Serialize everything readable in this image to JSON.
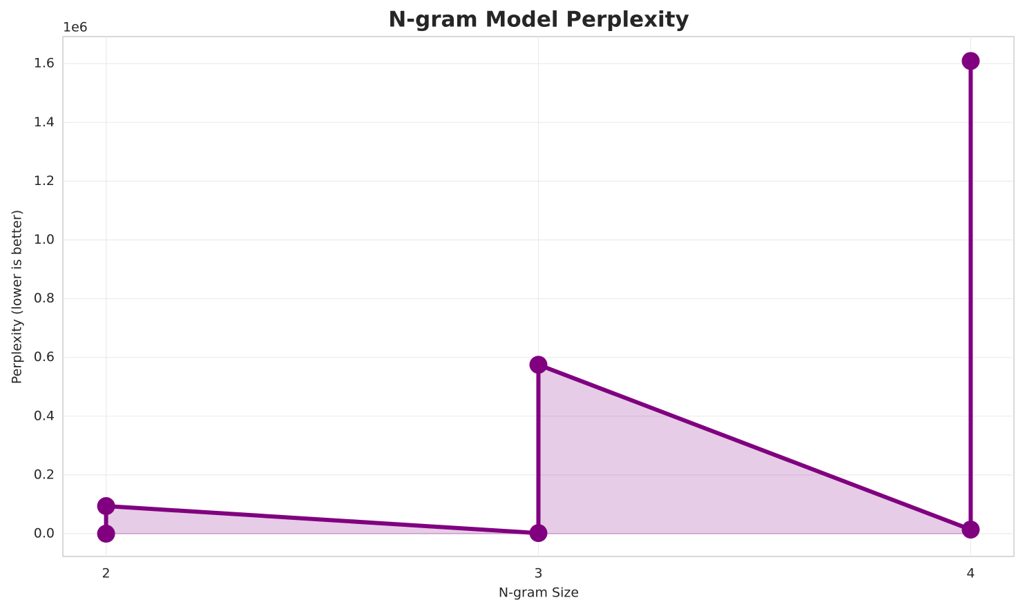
{
  "chart_data": {
    "type": "line",
    "title": "N-gram Model Perplexity",
    "x_label": "N-gram Size",
    "y_label": "Perplexity (lower is better)",
    "y_offset_label": "1e6",
    "series": [
      {
        "name": "Perplexity",
        "color": "#800080",
        "x": [
          2,
          2,
          3,
          3,
          4,
          4
        ],
        "values": [
          0,
          94000,
          2000,
          575000,
          14000,
          1609000
        ]
      }
    ],
    "fill": true,
    "xlim": [
      1.9,
      4.1
    ],
    "xticks": [
      2,
      3,
      4
    ],
    "ylim": [
      -77500,
      1692000
    ],
    "yticks": [
      {
        "value": 0,
        "label": "0.0"
      },
      {
        "value": 200000,
        "label": "0.2"
      },
      {
        "value": 400000,
        "label": "0.4"
      },
      {
        "value": 600000,
        "label": "0.6"
      },
      {
        "value": 800000,
        "label": "0.8"
      },
      {
        "value": 1000000,
        "label": "1.0"
      },
      {
        "value": 1200000,
        "label": "1.2"
      },
      {
        "value": 1400000,
        "label": "1.4"
      },
      {
        "value": 1600000,
        "label": "1.6"
      }
    ],
    "grid": true
  }
}
